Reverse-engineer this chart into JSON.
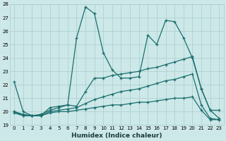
{
  "xlabel": "Humidex (Indice chaleur)",
  "bg_color": "#cde8e8",
  "grid_color": "#aacccc",
  "line_color": "#1a6e6e",
  "xlim": [
    -0.5,
    23.5
  ],
  "ylim": [
    19,
    28
  ],
  "yticks": [
    19,
    20,
    21,
    22,
    23,
    24,
    25,
    26,
    27,
    28
  ],
  "xticks": [
    0,
    1,
    2,
    3,
    4,
    5,
    6,
    7,
    8,
    9,
    10,
    11,
    12,
    13,
    14,
    15,
    16,
    17,
    18,
    19,
    20,
    21,
    22,
    23
  ],
  "series": [
    {
      "x": [
        0,
        1,
        2,
        3,
        4,
        5,
        6,
        7,
        8,
        9,
        10,
        11,
        12,
        13,
        14,
        15,
        16,
        17,
        18,
        19,
        20,
        21,
        22,
        23
      ],
      "y": [
        22.2,
        20.0,
        19.7,
        19.7,
        20.3,
        20.4,
        20.5,
        25.5,
        27.8,
        27.3,
        24.4,
        23.1,
        22.5,
        22.5,
        22.6,
        25.7,
        25.0,
        26.8,
        26.7,
        25.5,
        24.0,
        21.7,
        20.1,
        20.1
      ]
    },
    {
      "x": [
        0,
        1,
        2,
        3,
        4,
        5,
        6,
        7,
        8,
        9,
        10,
        11,
        12,
        13,
        14,
        15,
        16,
        17,
        18,
        19,
        20,
        21,
        22,
        23
      ],
      "y": [
        20.0,
        19.8,
        19.7,
        19.8,
        20.1,
        20.3,
        20.5,
        20.4,
        21.5,
        22.5,
        22.5,
        22.7,
        22.8,
        22.9,
        23.0,
        23.2,
        23.3,
        23.5,
        23.7,
        23.9,
        24.1,
        21.7,
        20.1,
        19.5
      ]
    },
    {
      "x": [
        0,
        1,
        2,
        3,
        4,
        5,
        6,
        7,
        8,
        9,
        10,
        11,
        12,
        13,
        14,
        15,
        16,
        17,
        18,
        19,
        20,
        21,
        22,
        23
      ],
      "y": [
        20.0,
        19.7,
        19.7,
        19.7,
        20.0,
        20.1,
        20.2,
        20.3,
        20.6,
        20.9,
        21.1,
        21.3,
        21.5,
        21.6,
        21.7,
        21.9,
        22.1,
        22.3,
        22.4,
        22.6,
        22.8,
        20.5,
        19.5,
        19.4
      ]
    },
    {
      "x": [
        0,
        1,
        2,
        3,
        4,
        5,
        6,
        7,
        8,
        9,
        10,
        11,
        12,
        13,
        14,
        15,
        16,
        17,
        18,
        19,
        20,
        21,
        22,
        23
      ],
      "y": [
        19.9,
        19.7,
        19.7,
        19.7,
        19.9,
        20.0,
        20.0,
        20.1,
        20.2,
        20.3,
        20.4,
        20.5,
        20.5,
        20.6,
        20.7,
        20.7,
        20.8,
        20.9,
        21.0,
        21.0,
        21.1,
        20.1,
        19.4,
        19.4
      ]
    }
  ]
}
